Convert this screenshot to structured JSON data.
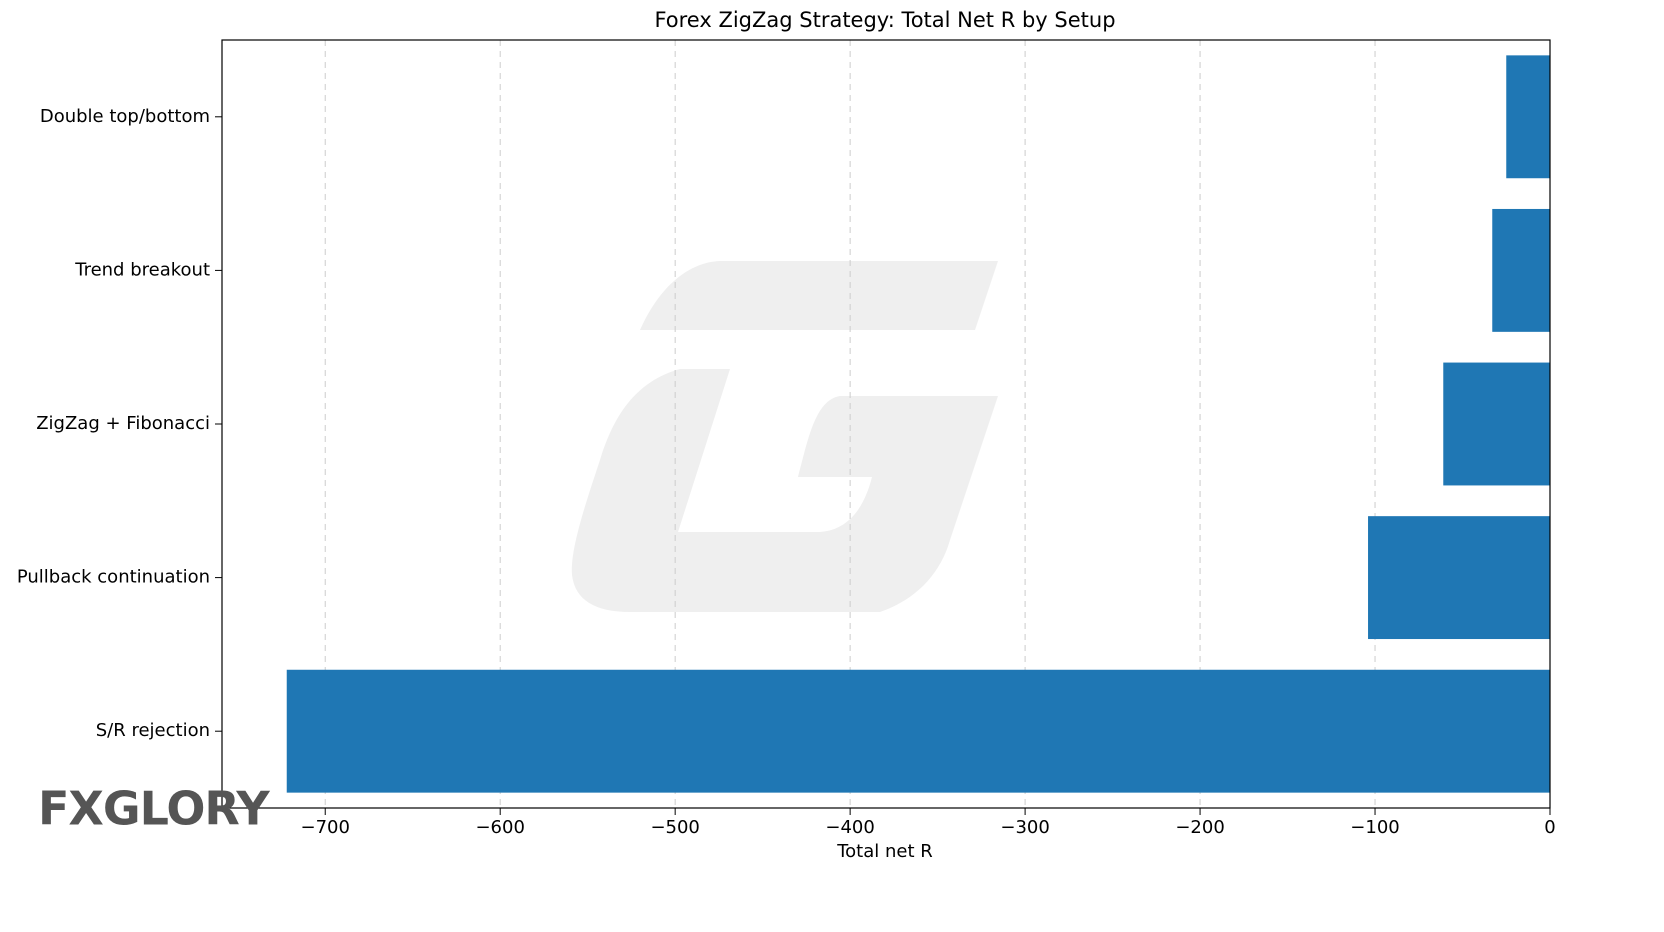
{
  "chart_data": {
    "type": "barh",
    "title": "Forex ZigZag Strategy: Total Net R by Setup",
    "xlabel": "Total net R",
    "categories": [
      "Double top/bottom",
      "Trend breakout",
      "ZigZag + Fibonacci",
      "Pullback continuation",
      "S/R rejection"
    ],
    "values": [
      -25,
      -33,
      -61,
      -104,
      -722
    ],
    "color": "#1f77b4",
    "xlim": [
      -759,
      0
    ],
    "xticks": [
      {
        "value": -700,
        "label": "−700"
      },
      {
        "value": -600,
        "label": "−600"
      },
      {
        "value": -500,
        "label": "−500"
      },
      {
        "value": -400,
        "label": "−400"
      },
      {
        "value": -300,
        "label": "−300"
      },
      {
        "value": -200,
        "label": "−200"
      },
      {
        "value": -100,
        "label": "−100"
      },
      0
    ],
    "grid": true,
    "watermark": "FXGLORY"
  }
}
